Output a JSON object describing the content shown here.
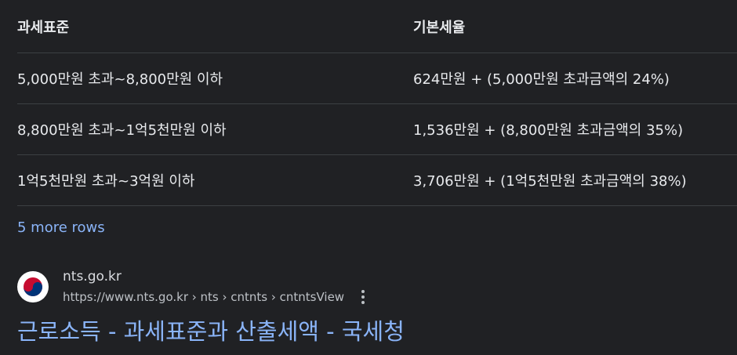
{
  "table": {
    "header": {
      "col1": "과세표준",
      "col2": "기본세율"
    },
    "rows": [
      {
        "bracket": "5,000만원 초과~8,800만원 이하",
        "rate": "624만원 + (5,000만원 초과금액의 24%)"
      },
      {
        "bracket": "8,800만원 초과~1억5천만원 이하",
        "rate": "1,536만원 + (8,800만원 초과금액의 35%)"
      },
      {
        "bracket": "1억5천만원 초과~3억원 이하",
        "rate": "3,706만원 + (1억5천만원 초과금액의 38%)"
      }
    ],
    "more_rows_label": "5 more rows"
  },
  "result": {
    "site_name": "nts.go.kr",
    "url": "https://www.nts.go.kr › nts › cntnts › cntntsView",
    "title": "근로소득 - 과세표준과 산출세액 - 국세청",
    "favicon_icon": "korea-taeguk-icon",
    "menu_icon": "more-vert-icon"
  },
  "colors": {
    "background": "#202124",
    "text": "#e8eaed",
    "link": "#8ab4f8",
    "divider": "#3c4043"
  }
}
